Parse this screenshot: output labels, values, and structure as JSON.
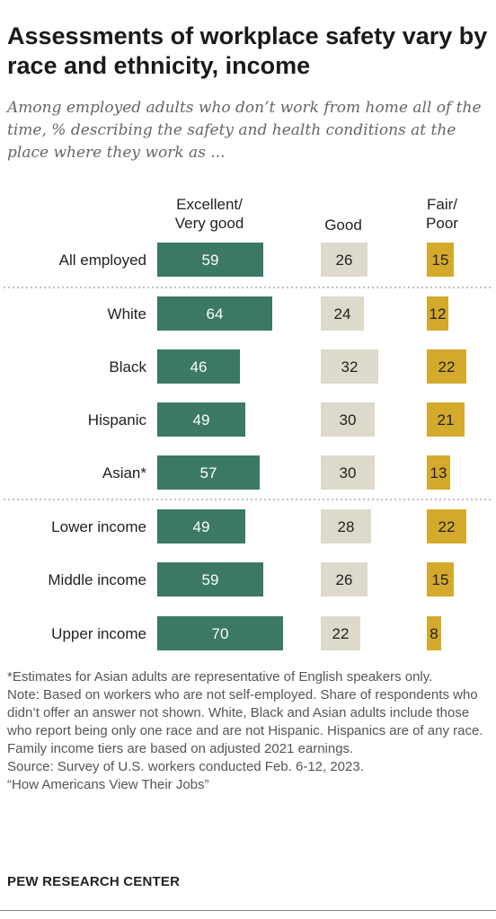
{
  "header": {
    "title": "Assessments of workplace safety vary by race and ethnicity, income",
    "subtitle": "Among employed adults who don’t work from home all of the time, % describing the safety and health conditions at the place where they work as ..."
  },
  "chart_data": {
    "type": "bar",
    "categories": [
      "All employed",
      "White",
      "Black",
      "Hispanic",
      "Asian*",
      "Lower income",
      "Middle income",
      "Upper income"
    ],
    "series": [
      {
        "name": "Excellent/ Very good",
        "color": "#3b7866",
        "label_color": "#ffffff",
        "values": [
          59,
          64,
          46,
          49,
          57,
          49,
          59,
          70
        ]
      },
      {
        "name": "Good",
        "color": "#ddd9cb",
        "label_color": "#222222",
        "values": [
          26,
          24,
          32,
          30,
          30,
          28,
          26,
          22
        ]
      },
      {
        "name": "Fair/ Poor",
        "color": "#d4aa2c",
        "label_color": "#222222",
        "values": [
          15,
          12,
          22,
          21,
          13,
          22,
          15,
          8
        ]
      }
    ],
    "series_labels": {
      "excellent_line1": "Excellent/",
      "excellent_line2": "Very good",
      "good": "Good",
      "fair_line1": "Fair/",
      "fair_line2": "Poor"
    },
    "groups": [
      [
        "All employed"
      ],
      [
        "White",
        "Black",
        "Hispanic",
        "Asian*"
      ],
      [
        "Lower income",
        "Middle income",
        "Upper income"
      ]
    ]
  },
  "footer": {
    "note_asian": "*Estimates for Asian adults are representative of English speakers only.",
    "note_main": "Note: Based on workers who are not self-employed. Share of respondents who didn’t offer an answer not shown. White, Black and Asian adults include those who report being only one race and are not Hispanic. Hispanics are of any race. Family income tiers are based on adjusted 2021 earnings.",
    "source": "Source: Survey of U.S. workers conducted Feb. 6-12, 2023.",
    "report": "“How Americans View Their Jobs”",
    "brand": "PEW RESEARCH CENTER"
  }
}
